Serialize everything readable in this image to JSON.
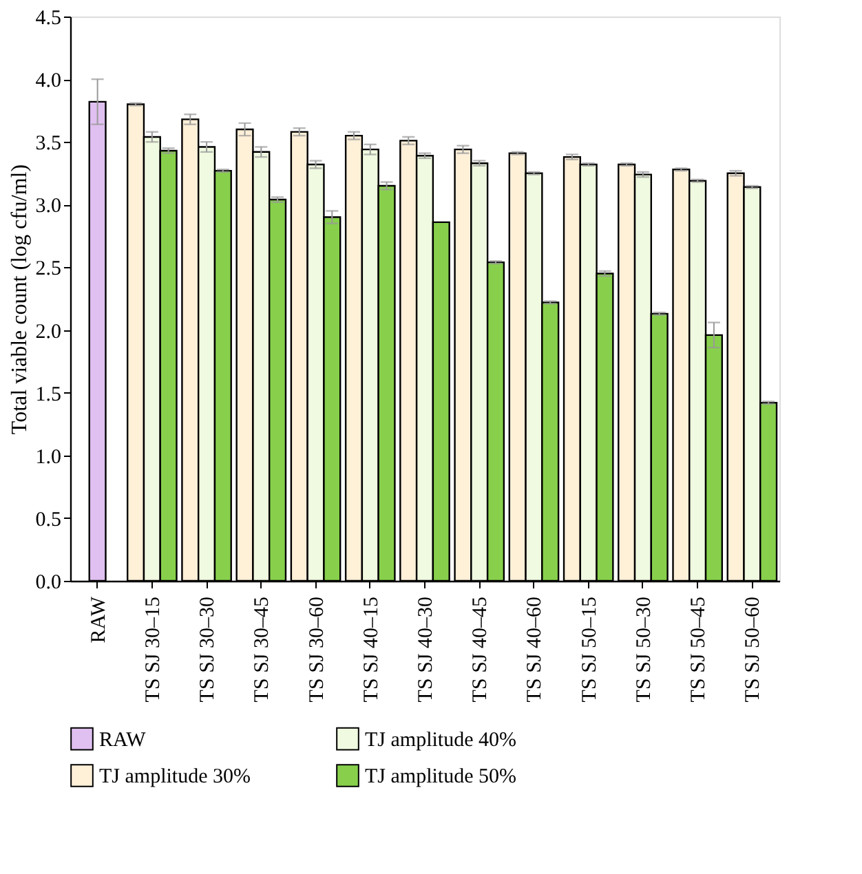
{
  "chart_data": {
    "type": "bar",
    "ylabel": "Total viable count (log cfu/ml)",
    "categories": [
      "RAW",
      "TS SJ 30–15",
      "TS SJ 30–30",
      "TS SJ 30–45",
      "TS SJ 30–60",
      "TS SJ 40–15",
      "TS SJ 40–30",
      "TS SJ 40–45",
      "TS SJ 40–60",
      "TS SJ 50–15",
      "TS SJ 50–30",
      "TS SJ 50–45",
      "TS SJ 50–60"
    ],
    "series": [
      {
        "name": "RAW",
        "color": "#e0c0f0",
        "values": [
          3.82,
          null,
          null,
          null,
          null,
          null,
          null,
          null,
          null,
          null,
          null,
          null,
          null
        ],
        "errors": [
          0.18,
          null,
          null,
          null,
          null,
          null,
          null,
          null,
          null,
          null,
          null,
          null,
          null
        ]
      },
      {
        "name": "TJ amplitude 30%",
        "color": "#fff0d8",
        "values": [
          null,
          3.8,
          3.68,
          3.6,
          3.58,
          3.55,
          3.51,
          3.44,
          3.41,
          3.38,
          3.32,
          3.28,
          3.25
        ],
        "errors": [
          null,
          0.01,
          0.04,
          0.05,
          0.03,
          0.03,
          0.03,
          0.03,
          0.01,
          0.02,
          0.01,
          0.01,
          0.02
        ]
      },
      {
        "name": "TJ amplitude 40%",
        "color": "#f0fae0",
        "values": [
          null,
          3.54,
          3.46,
          3.42,
          3.32,
          3.44,
          3.39,
          3.33,
          3.25,
          3.32,
          3.24,
          3.19,
          3.14
        ],
        "errors": [
          null,
          0.04,
          0.04,
          0.04,
          0.03,
          0.04,
          0.02,
          0.02,
          0.01,
          0.01,
          0.02,
          0.01,
          0.01
        ]
      },
      {
        "name": "TJ amplitude 50%",
        "color": "#88d04c",
        "values": [
          null,
          3.43,
          3.27,
          3.04,
          2.9,
          3.15,
          2.86,
          2.54,
          2.22,
          2.45,
          2.13,
          1.96,
          1.42
        ],
        "errors": [
          null,
          0.02,
          0.01,
          0.02,
          0.05,
          0.03,
          null,
          0.01,
          0.01,
          0.02,
          0.01,
          0.1,
          0.01
        ]
      }
    ],
    "ylim": [
      0,
      4.5
    ],
    "yticks": [
      {
        "value": 0,
        "label": "0.0"
      },
      0.5,
      {
        "value": 1,
        "label": "1.0"
      },
      1.5,
      {
        "value": 2,
        "label": "2.0"
      },
      2.5,
      {
        "value": 3,
        "label": "3.0"
      },
      3.5,
      {
        "value": 4,
        "label": "4.0"
      },
      4.5
    ],
    "grid": false,
    "legend": "bottom"
  }
}
